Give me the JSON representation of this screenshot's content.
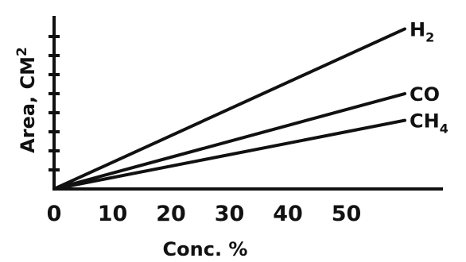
{
  "chart_data": {
    "type": "line",
    "xlabel": "Conc. %",
    "ylabel": "Area, CM",
    "ylabel_superscript": "2",
    "xlim": [
      0,
      65
    ],
    "x_ticks": [
      "0",
      "10",
      "20",
      "30",
      "40",
      "50"
    ],
    "y_tick_count": 8,
    "grid": false,
    "series": [
      {
        "name": "H",
        "subscript": "2",
        "x": [
          0,
          60
        ],
        "y": [
          0,
          8.4
        ]
      },
      {
        "name": "CO",
        "subscript": "",
        "x": [
          0,
          60
        ],
        "y": [
          0,
          5.0
        ]
      },
      {
        "name": "CH",
        "subscript": "4",
        "x": [
          0,
          60
        ],
        "y": [
          0,
          3.6
        ]
      }
    ]
  }
}
